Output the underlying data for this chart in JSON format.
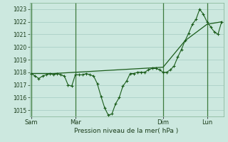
{
  "background_color": "#cce8df",
  "grid_color": "#aacfc7",
  "line_color": "#1a5c1a",
  "marker_color": "#1a5c1a",
  "xlabel": "Pression niveau de la mer( hPa )",
  "ylim": [
    1014.5,
    1023.5
  ],
  "yticks": [
    1015,
    1016,
    1017,
    1018,
    1019,
    1020,
    1021,
    1022,
    1023
  ],
  "xtick_labels": [
    "Sam",
    "Mar",
    "Dim",
    "Lun"
  ],
  "xtick_positions": [
    0,
    12,
    36,
    48
  ],
  "vline_positions": [
    0,
    12,
    36,
    48
  ],
  "xlim": [
    -0.5,
    52.5
  ],
  "series1_x": [
    0,
    1,
    2,
    3,
    4,
    5,
    6,
    7,
    8,
    9,
    10,
    11,
    12,
    13,
    14,
    15,
    16,
    17,
    18,
    19,
    20,
    21,
    22,
    23,
    24,
    25,
    26,
    27,
    28,
    29,
    30,
    31,
    32,
    33,
    34,
    35,
    36,
    37,
    38,
    39,
    40,
    41,
    42,
    43,
    44,
    45,
    46,
    47,
    48,
    49,
    50,
    51,
    52
  ],
  "series1_y": [
    1017.9,
    1017.7,
    1017.5,
    1017.7,
    1017.8,
    1017.9,
    1017.8,
    1017.9,
    1017.8,
    1017.7,
    1017.0,
    1016.9,
    1017.8,
    1017.8,
    1017.8,
    1017.9,
    1017.8,
    1017.7,
    1017.1,
    1016.1,
    1015.2,
    1014.6,
    1014.7,
    1015.5,
    1016.0,
    1016.9,
    1017.3,
    1017.9,
    1017.9,
    1018.0,
    1018.0,
    1018.0,
    1018.2,
    1018.3,
    1018.3,
    1018.2,
    1018.0,
    1018.0,
    1018.2,
    1018.5,
    1019.2,
    1019.8,
    1020.5,
    1021.1,
    1021.8,
    1022.2,
    1023.0,
    1022.6,
    1022.0,
    1021.6,
    1021.2,
    1021.0,
    1022.0
  ],
  "series2_x": [
    0,
    6,
    12,
    18,
    24,
    30,
    36,
    42,
    48,
    52
  ],
  "series2_y": [
    1017.9,
    1017.9,
    1018.0,
    1018.1,
    1018.2,
    1018.3,
    1018.4,
    1020.5,
    1021.8,
    1022.0
  ]
}
